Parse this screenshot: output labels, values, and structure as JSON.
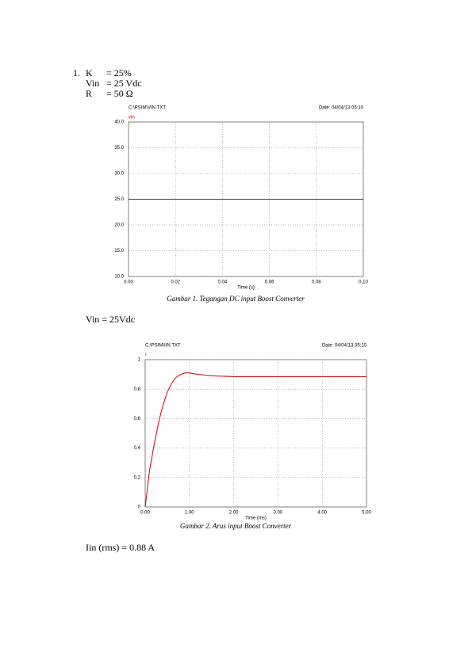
{
  "document": {
    "item_number": "1.",
    "params": [
      {
        "name": "K",
        "value": "= 25%"
      },
      {
        "name": "Vin",
        "value": "= 25 Vdc"
      },
      {
        "name": "R",
        "value": "= 50 Ω"
      }
    ],
    "caption1": "Gambar 1. Tegangan DC input Boost Converter",
    "note1": "Vin = 25Vdc",
    "caption2": "Gambar 2. Arus input Boost Converter",
    "note2": "Iin (rms) = 0.88 A"
  },
  "chart_data": [
    {
      "type": "line",
      "file_label": "C:\\PSIM\\VIN.TXT",
      "date_label": "Date: 04/04/13 05:10",
      "xlabel": "Time (s)",
      "x": [
        0,
        0.1
      ],
      "series": [
        {
          "name": "vin",
          "color": "#d00000",
          "values": [
            25,
            25
          ]
        }
      ],
      "xlim": [
        0,
        0.1
      ],
      "ylim": [
        10,
        40
      ],
      "xticks": [
        {
          "value": 0,
          "label": "0.00"
        },
        0.02,
        0.04,
        0.06,
        0.08,
        {
          "value": 0.1,
          "label": "0.10"
        }
      ],
      "yticks": [
        {
          "value": 40,
          "label": "40.0"
        },
        {
          "value": 35,
          "label": "35.0"
        },
        {
          "value": 30,
          "label": "30.0"
        },
        {
          "value": 25,
          "label": "25.0"
        },
        {
          "value": 20,
          "label": "20.0"
        },
        {
          "value": 15,
          "label": "15.0"
        },
        {
          "value": 10,
          "label": "10.0"
        }
      ],
      "grid": true
    },
    {
      "type": "line",
      "file_label": "C:\\PSIM\\IIN.TXT",
      "date_label": "Date: 04/04/13 05:10",
      "xlabel": "Time (ms)",
      "x": [
        0,
        0.1,
        0.2,
        0.3,
        0.4,
        0.5,
        0.6,
        0.7,
        0.8,
        0.9,
        1.0,
        1.2,
        1.5,
        2,
        3,
        4,
        5
      ],
      "series": [
        {
          "name": "I",
          "color": "#d00000",
          "values": [
            0,
            0.25,
            0.42,
            0.57,
            0.69,
            0.78,
            0.84,
            0.88,
            0.9,
            0.91,
            0.91,
            0.9,
            0.89,
            0.885,
            0.885,
            0.885,
            0.885
          ]
        }
      ],
      "xlim": [
        0,
        5
      ],
      "ylim": [
        0,
        1
      ],
      "xticks": [
        {
          "value": 0,
          "label": "0.00"
        },
        {
          "value": 1,
          "label": "1.00"
        },
        {
          "value": 2,
          "label": "2.00"
        },
        {
          "value": 3,
          "label": "3.00"
        },
        {
          "value": 4,
          "label": "4.00"
        },
        {
          "value": 5,
          "label": "5.00"
        }
      ],
      "yticks": [
        0,
        0.2,
        0.4,
        0.6,
        0.8,
        1
      ],
      "grid": true
    }
  ]
}
